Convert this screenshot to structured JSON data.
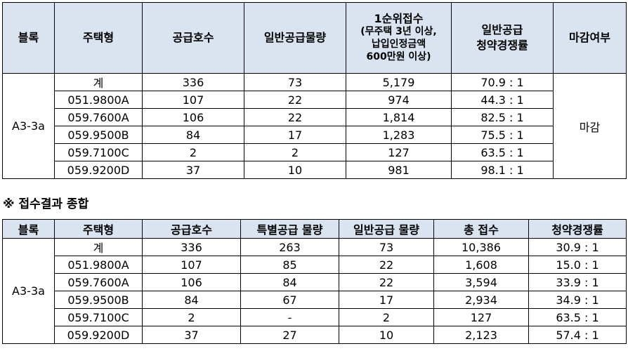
{
  "table1": {
    "headers": {
      "block": "블록",
      "house_type": "주택형",
      "supply_units": "공급호수",
      "general_supply": "일반공급물량",
      "first_rank_lines": [
        "1순위접수",
        "(무주택 3년 이상,",
        "납입인정금액",
        "600만원 이상)"
      ],
      "competition_lines": [
        "일반공급",
        "청약경쟁률"
      ],
      "closed": "마감여부"
    },
    "block": "A3-3a",
    "closed_value": "마감",
    "rows": [
      {
        "type": "계",
        "units": "336",
        "general": "73",
        "applicants": "5,179",
        "ratio": "70.9 : 1"
      },
      {
        "type": "051.9800A",
        "units": "107",
        "general": "22",
        "applicants": "974",
        "ratio": "44.3 : 1"
      },
      {
        "type": "059.7600A",
        "units": "106",
        "general": "22",
        "applicants": "1,814",
        "ratio": "82.5 : 1"
      },
      {
        "type": "059.9500B",
        "units": "84",
        "general": "17",
        "applicants": "1,283",
        "ratio": "75.5 : 1"
      },
      {
        "type": "059.7100C",
        "units": "2",
        "general": "2",
        "applicants": "127",
        "ratio": "63.5 : 1"
      },
      {
        "type": "059.9200D",
        "units": "37",
        "general": "10",
        "applicants": "981",
        "ratio": "98.1 : 1"
      }
    ]
  },
  "section_title": "※ 접수결과 종합",
  "table2": {
    "headers": {
      "block": "블록",
      "house_type": "주택형",
      "supply_units": "공급호수",
      "special_supply": "특별공급 물량",
      "general_supply": "일반공급 물량",
      "total_applicants": "총 접수",
      "competition": "청약경쟁률"
    },
    "block": "A3-3a",
    "rows": [
      {
        "type": "계",
        "units": "336",
        "special": "263",
        "general": "73",
        "total": "10,386",
        "ratio": "30.9 : 1"
      },
      {
        "type": "051.9800A",
        "units": "107",
        "special": "85",
        "general": "22",
        "total": "1,608",
        "ratio": "15.0 : 1"
      },
      {
        "type": "059.7600A",
        "units": "106",
        "special": "84",
        "general": "22",
        "total": "3,594",
        "ratio": "33.9 : 1"
      },
      {
        "type": "059.9500B",
        "units": "84",
        "special": "67",
        "general": "17",
        "total": "2,934",
        "ratio": "34.9 : 1"
      },
      {
        "type": "059.7100C",
        "units": "2",
        "special": "-",
        "general": "2",
        "total": "127",
        "ratio": "63.5 : 1"
      },
      {
        "type": "059.9200D",
        "units": "37",
        "special": "27",
        "general": "10",
        "total": "2,123",
        "ratio": "57.4 : 1"
      }
    ]
  }
}
